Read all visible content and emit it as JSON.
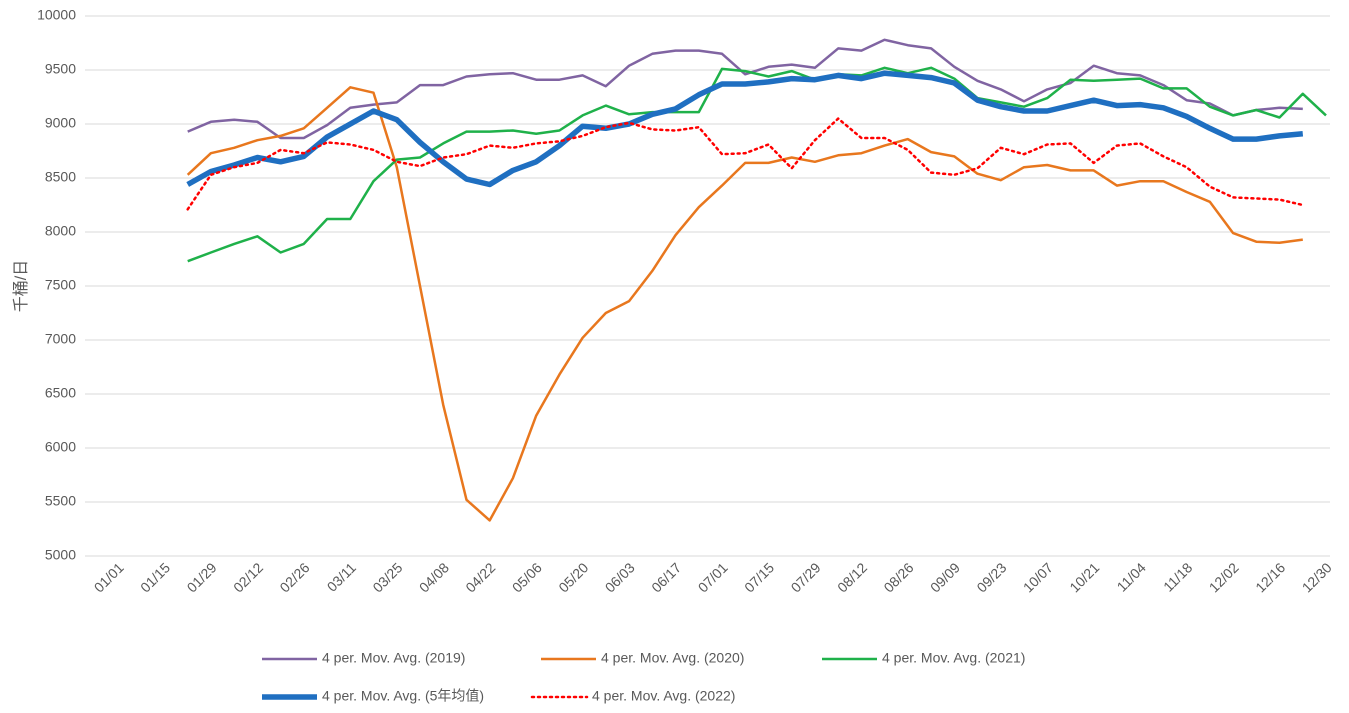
{
  "chart_data": {
    "type": "line",
    "y_label": "千桶/日",
    "categories": [
      "01/01",
      null,
      "01/15",
      null,
      "01/29",
      null,
      "02/12",
      null,
      "02/26",
      null,
      "03/11",
      null,
      "03/25",
      null,
      "04/08",
      null,
      "04/22",
      null,
      "05/06",
      null,
      "05/20",
      null,
      "06/03",
      null,
      "06/17",
      null,
      "07/01",
      null,
      "07/15",
      null,
      "07/29",
      null,
      "08/12",
      null,
      "08/26",
      null,
      "09/09",
      null,
      "09/23",
      null,
      "10/07",
      null,
      "10/21",
      null,
      "11/04",
      null,
      "11/18",
      null,
      "12/02",
      null,
      "12/16",
      null,
      "12/30"
    ],
    "ylim": [
      5000,
      10000
    ],
    "yticks": [
      5000,
      5500,
      6000,
      6500,
      7000,
      7500,
      8000,
      8500,
      9000,
      9500,
      10000
    ],
    "grid": true,
    "legend": "bottom",
    "series": [
      {
        "name": "4 per. Mov. Avg. (2019)",
        "color": "#8064a2",
        "line_width": 2.5,
        "line_style": "solid",
        "values": [
          null,
          null,
          null,
          8930,
          9020,
          9040,
          9020,
          8870,
          8870,
          8990,
          9150,
          9180,
          9200,
          9360,
          9360,
          9440,
          9460,
          9470,
          9410,
          9410,
          9450,
          9350,
          9540,
          9650,
          9680,
          9680,
          9650,
          9460,
          9530,
          9550,
          9520,
          9700,
          9680,
          9780,
          9730,
          9700,
          9530,
          9400,
          9320,
          9210,
          9320,
          9380,
          9540,
          9470,
          9450,
          9360,
          9220,
          9190,
          9080,
          9130,
          9150,
          9140,
          null
        ]
      },
      {
        "name": "4 per. Mov. Avg. (2020)",
        "color": "#e8771e",
        "line_width": 2.5,
        "line_style": "solid",
        "values": [
          null,
          null,
          null,
          8530,
          8730,
          8780,
          8850,
          8890,
          8960,
          9150,
          9340,
          9290,
          8600,
          7500,
          6400,
          5520,
          5330,
          5720,
          6300,
          6680,
          7020,
          7250,
          7360,
          7640,
          7970,
          8230,
          8430,
          8640,
          8640,
          8690,
          8650,
          8710,
          8730,
          8800,
          8860,
          8740,
          8700,
          8540,
          8480,
          8600,
          8620,
          8570,
          8570,
          8430,
          8470,
          8470,
          8370,
          8280,
          7990,
          7910,
          7900,
          7930,
          null
        ]
      },
      {
        "name": "4 per. Mov. Avg. (2021)",
        "color": "#1fb14a",
        "line_width": 2.5,
        "line_style": "solid",
        "values": [
          null,
          null,
          null,
          7730,
          7810,
          7890,
          7960,
          7810,
          7890,
          8120,
          8120,
          8470,
          8670,
          8690,
          8820,
          8930,
          8930,
          8940,
          8910,
          8940,
          9080,
          9170,
          9090,
          9110,
          9110,
          9110,
          9510,
          9490,
          9440,
          9490,
          9410,
          9460,
          9450,
          9520,
          9470,
          9520,
          9420,
          9240,
          9200,
          9160,
          9240,
          9410,
          9400,
          9410,
          9420,
          9330,
          9330,
          9160,
          9080,
          9130,
          9060,
          9280,
          9080
        ]
      },
      {
        "name": "4 per. Mov. Avg. (5年均值)",
        "color": "#1f6fc1",
        "line_width": 5.5,
        "line_style": "solid",
        "values": [
          null,
          null,
          null,
          8440,
          8560,
          8620,
          8690,
          8650,
          8700,
          8880,
          9000,
          9120,
          9040,
          8830,
          8650,
          8490,
          8440,
          8570,
          8650,
          8800,
          8980,
          8960,
          9000,
          9090,
          9140,
          9270,
          9370,
          9370,
          9390,
          9420,
          9410,
          9450,
          9420,
          9470,
          9450,
          9430,
          9380,
          9220,
          9160,
          9120,
          9120,
          9170,
          9220,
          9170,
          9180,
          9150,
          9070,
          8960,
          8860,
          8860,
          8890,
          8910,
          null
        ]
      },
      {
        "name": "4 per. Mov. Avg. (2022)",
        "color": "#ff0000",
        "line_width": 2.5,
        "line_style": "dotted",
        "values": [
          null,
          null,
          null,
          8210,
          8530,
          8600,
          8640,
          8760,
          8730,
          8830,
          8810,
          8760,
          8650,
          8610,
          8690,
          8720,
          8800,
          8780,
          8820,
          8840,
          8890,
          8970,
          9010,
          8950,
          8940,
          8970,
          8720,
          8730,
          8810,
          8590,
          8850,
          9050,
          8870,
          8870,
          8760,
          8550,
          8530,
          8590,
          8780,
          8720,
          8810,
          8820,
          8640,
          8800,
          8820,
          8700,
          8600,
          8420,
          8320,
          8310,
          8300,
          8250,
          null
        ]
      }
    ]
  }
}
